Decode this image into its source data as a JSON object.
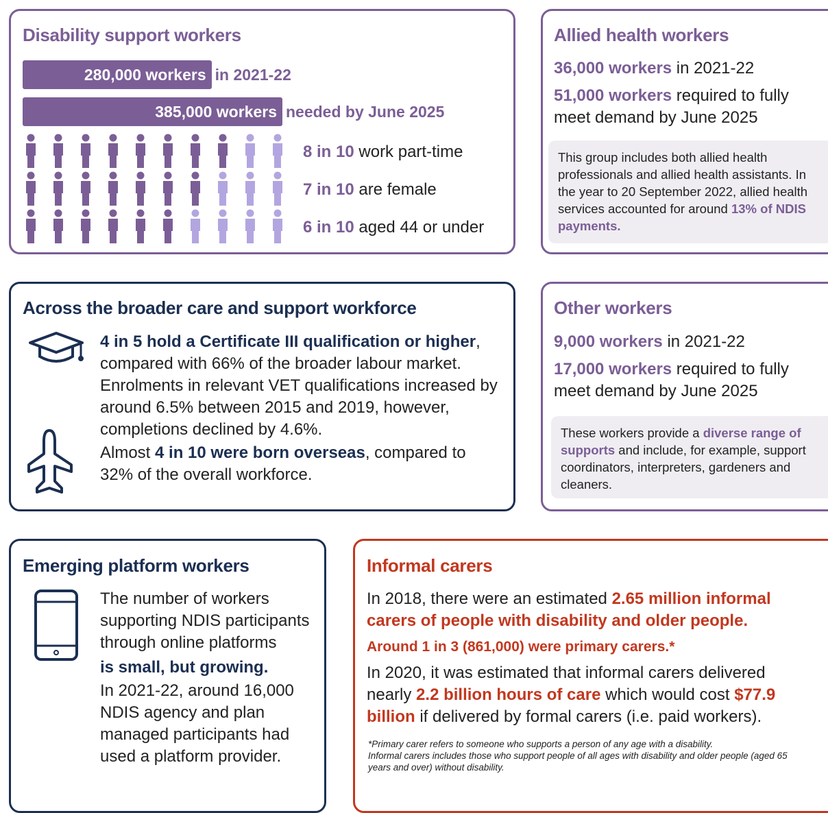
{
  "disability": {
    "title": "Disability support workers",
    "bars": [
      {
        "label": "280,000 workers",
        "value": 280000,
        "note": "in 2021-22"
      },
      {
        "label": "385,000 workers",
        "value": 385000,
        "note": "needed by June 2025"
      }
    ],
    "stats": [
      {
        "highlight": "8 in 10",
        "text": " work part-time",
        "filled": 8,
        "total": 10
      },
      {
        "highlight": "7 in 10",
        "text": " are female",
        "filled": 7,
        "total": 10
      },
      {
        "highlight": "6 in 10",
        "text": " aged 44 or under",
        "filled": 6,
        "total": 10
      }
    ]
  },
  "allied": {
    "title": "Allied health workers",
    "lines": [
      [
        {
          "t": "36,000 workers",
          "em": true
        },
        {
          "t": " in 2021-22"
        }
      ],
      [
        {
          "t": "51,000 workers",
          "em": true
        },
        {
          "t": " required to fully meet demand by June 2025"
        }
      ]
    ],
    "note": [
      {
        "t": "This group includes both allied health professionals and allied health assistants. In the year to 20 September 2022, allied health services accounted for around "
      },
      {
        "t": "13% of NDIS payments.",
        "em": true
      }
    ]
  },
  "broader": {
    "title": "Across the broader care and support workforce",
    "items": [
      [
        {
          "t": "4 in 5 hold a Certificate III qualification or higher",
          "em": true
        },
        {
          "t": ", compared with 66% of the broader labour market. Enrolments in relevant VET qualifications increased by around 6.5% between 2015 and 2019, however, completions declined by 4.6%."
        }
      ],
      [
        {
          "t": "Almost "
        },
        {
          "t": "4 in 10 were born overseas",
          "em": true
        },
        {
          "t": ", compared to 32% of the overall workforce."
        }
      ]
    ]
  },
  "other": {
    "title": "Other workers",
    "lines": [
      [
        {
          "t": "9,000 workers",
          "em": true
        },
        {
          "t": " in 2021-22"
        }
      ],
      [
        {
          "t": "17,000 workers",
          "em": true
        },
        {
          "t": " required to fully meet demand by June 2025"
        }
      ]
    ],
    "note": [
      {
        "t": "These workers provide a "
      },
      {
        "t": "diverse range of supports",
        "em": true
      },
      {
        "t": " and include, for example, support coordinators, interpreters, gardeners and cleaners."
      }
    ]
  },
  "emerging": {
    "title": "Emerging platform workers",
    "paragraphs": [
      [
        {
          "t": "The number of workers supporting NDIS participants through online platforms"
        }
      ],
      [
        {
          "t": "is small, but growing.",
          "em": true
        }
      ],
      [
        {
          "t": "In 2021-22, around 16,000 NDIS agency and plan managed participants had used a platform provider."
        }
      ]
    ]
  },
  "informal": {
    "title": "Informal carers",
    "paragraphs": [
      [
        {
          "t": "In 2018, there were an estimated "
        },
        {
          "t": "2.65 million informal carers of people with disability and older people.",
          "em": true
        }
      ],
      [
        {
          "t": "Around 1 in 3 (861,000) were primary carers.*",
          "em": true
        }
      ],
      [
        {
          "t": "In 2020, it was estimated that informal carers delivered nearly "
        },
        {
          "t": "2.2 billion hours of care",
          "em": true
        },
        {
          "t": " which would cost "
        },
        {
          "t": "$77.9 billion",
          "em": true
        },
        {
          "t": " if delivered by formal carers (i.e. paid workers)."
        }
      ]
    ],
    "footnote": [
      "*Primary carer refers to someone who supports a person of any age with a disability.",
      "Informal carers includes those who support people of all ages with disability and older people (aged 65 years and over) without disability."
    ]
  }
}
